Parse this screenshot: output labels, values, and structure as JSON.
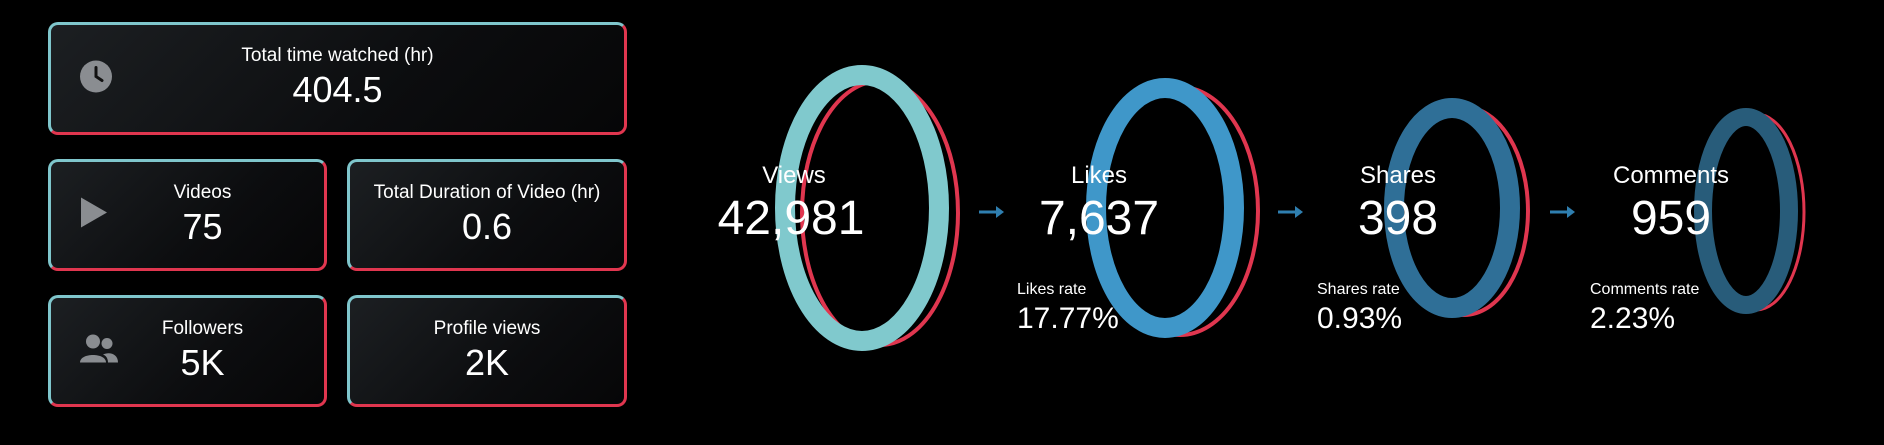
{
  "kpis": {
    "total_time_watched": {
      "label": "Total time watched (hr)",
      "value": "404.5",
      "icon": "clock-icon"
    },
    "videos": {
      "label": "Videos",
      "value": "75",
      "icon": "play-icon"
    },
    "total_duration": {
      "label": "Total Duration of Video (hr)",
      "value": "0.6"
    },
    "followers": {
      "label": "Followers",
      "value": "5K",
      "icon": "users-icon"
    },
    "profile_views": {
      "label": "Profile views",
      "value": "2K"
    }
  },
  "funnel": {
    "views": {
      "label": "Views",
      "value": "42,981",
      "color": "#80c9cd"
    },
    "likes": {
      "label": "Likes",
      "value": "7,637",
      "rate_label": "Likes rate",
      "rate_value": "17.77%",
      "color": "#3f97c9"
    },
    "shares": {
      "label": "Shares",
      "value": "398",
      "rate_label": "Shares rate",
      "rate_value": "0.93%",
      "color": "#2f6f97"
    },
    "comments": {
      "label": "Comments",
      "value": "959",
      "rate_label": "Comments rate",
      "rate_value": "2.23%",
      "color": "#285c7a"
    }
  },
  "colors": {
    "accent_teal": "#7fc6cc",
    "accent_red": "#e0364f",
    "background": "#000000",
    "arrow": "#2f7fb0"
  }
}
